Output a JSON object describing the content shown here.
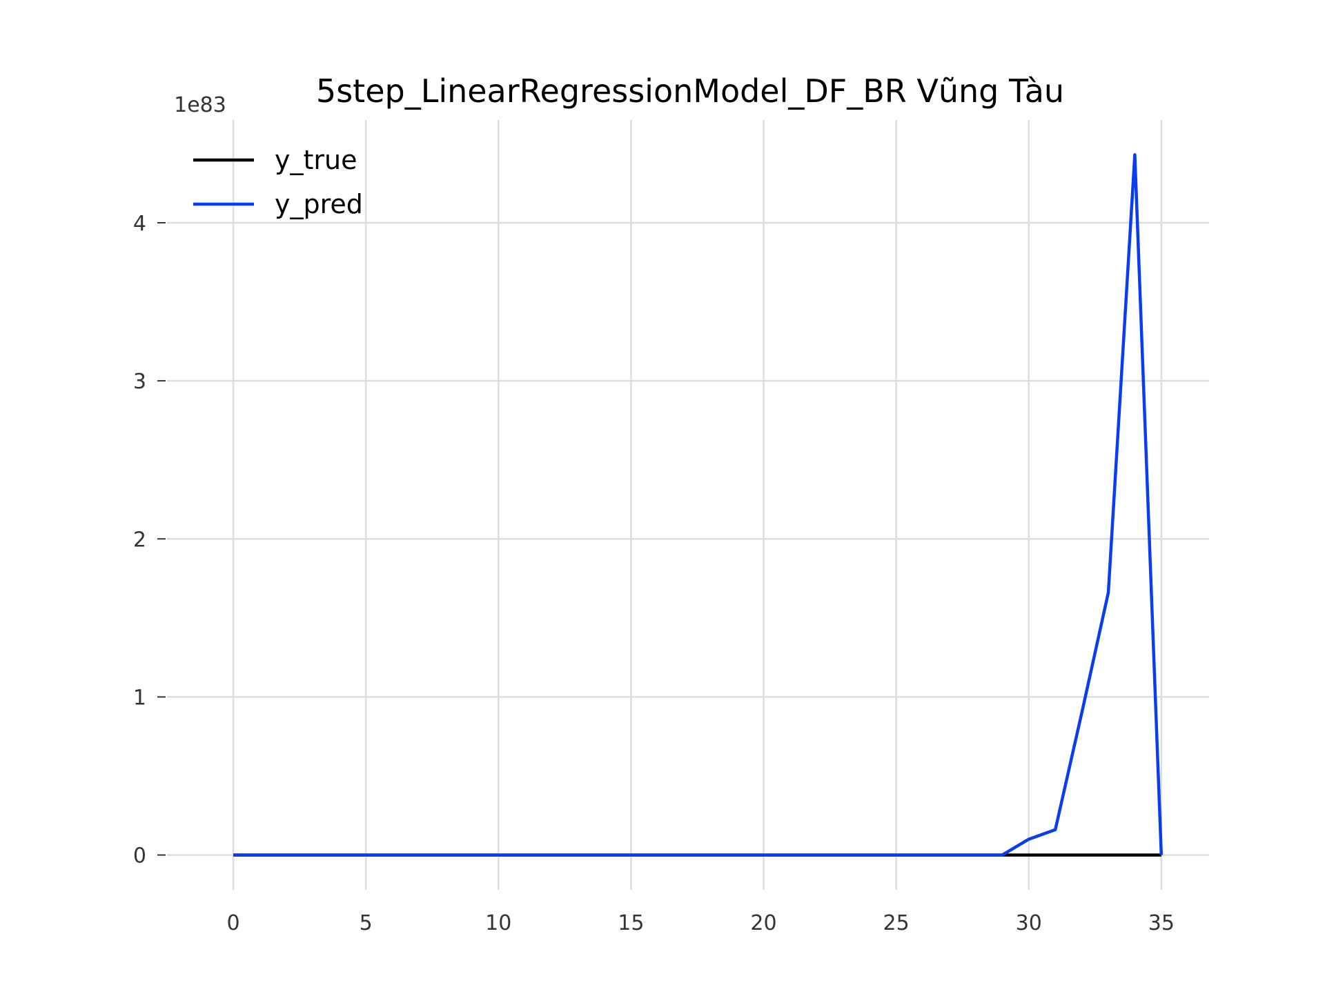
{
  "chart_data": {
    "type": "line",
    "title": "5step_LinearRegressionModel_DF_BR Vũng Tàu",
    "xlabel": "",
    "ylabel": "",
    "y_offset_text": "1e83",
    "xlim": [
      -2.5,
      36.8
    ],
    "ylim": [
      -0.22,
      4.65
    ],
    "x_ticks": [
      0,
      5,
      10,
      15,
      20,
      25,
      30,
      35
    ],
    "y_ticks": [
      0,
      1,
      2,
      3,
      4
    ],
    "grid": true,
    "legend_position": "top-left",
    "series": [
      {
        "name": "y_true",
        "color": "#000000",
        "x": [
          0,
          1,
          2,
          3,
          4,
          5,
          6,
          7,
          8,
          9,
          10,
          11,
          12,
          13,
          14,
          15,
          16,
          17,
          18,
          19,
          20,
          21,
          22,
          23,
          24,
          25,
          26,
          27,
          28,
          29,
          30,
          31,
          32,
          33,
          34,
          35
        ],
        "values": [
          0,
          0,
          0,
          0,
          0,
          0,
          0,
          0,
          0,
          0,
          0,
          0,
          0,
          0,
          0,
          0,
          0,
          0,
          0,
          0,
          0,
          0,
          0,
          0,
          0,
          0,
          0,
          0,
          0,
          0,
          0,
          0,
          0,
          0,
          0,
          0
        ]
      },
      {
        "name": "y_pred",
        "color": "#0a3cf0",
        "x": [
          0,
          1,
          2,
          3,
          4,
          5,
          6,
          7,
          8,
          9,
          10,
          11,
          12,
          13,
          14,
          15,
          16,
          17,
          18,
          19,
          20,
          21,
          22,
          23,
          24,
          25,
          26,
          27,
          28,
          29,
          30,
          31,
          32,
          33,
          34,
          35
        ],
        "values": [
          0,
          0,
          0,
          0,
          0,
          0,
          0,
          0,
          0,
          0,
          0,
          0,
          0,
          0,
          0,
          0,
          0,
          0,
          0,
          0,
          0,
          0,
          0,
          0,
          0,
          0,
          0,
          0,
          0,
          0,
          0.1,
          0.16,
          0.9,
          1.66,
          4.43,
          0
        ]
      }
    ]
  }
}
